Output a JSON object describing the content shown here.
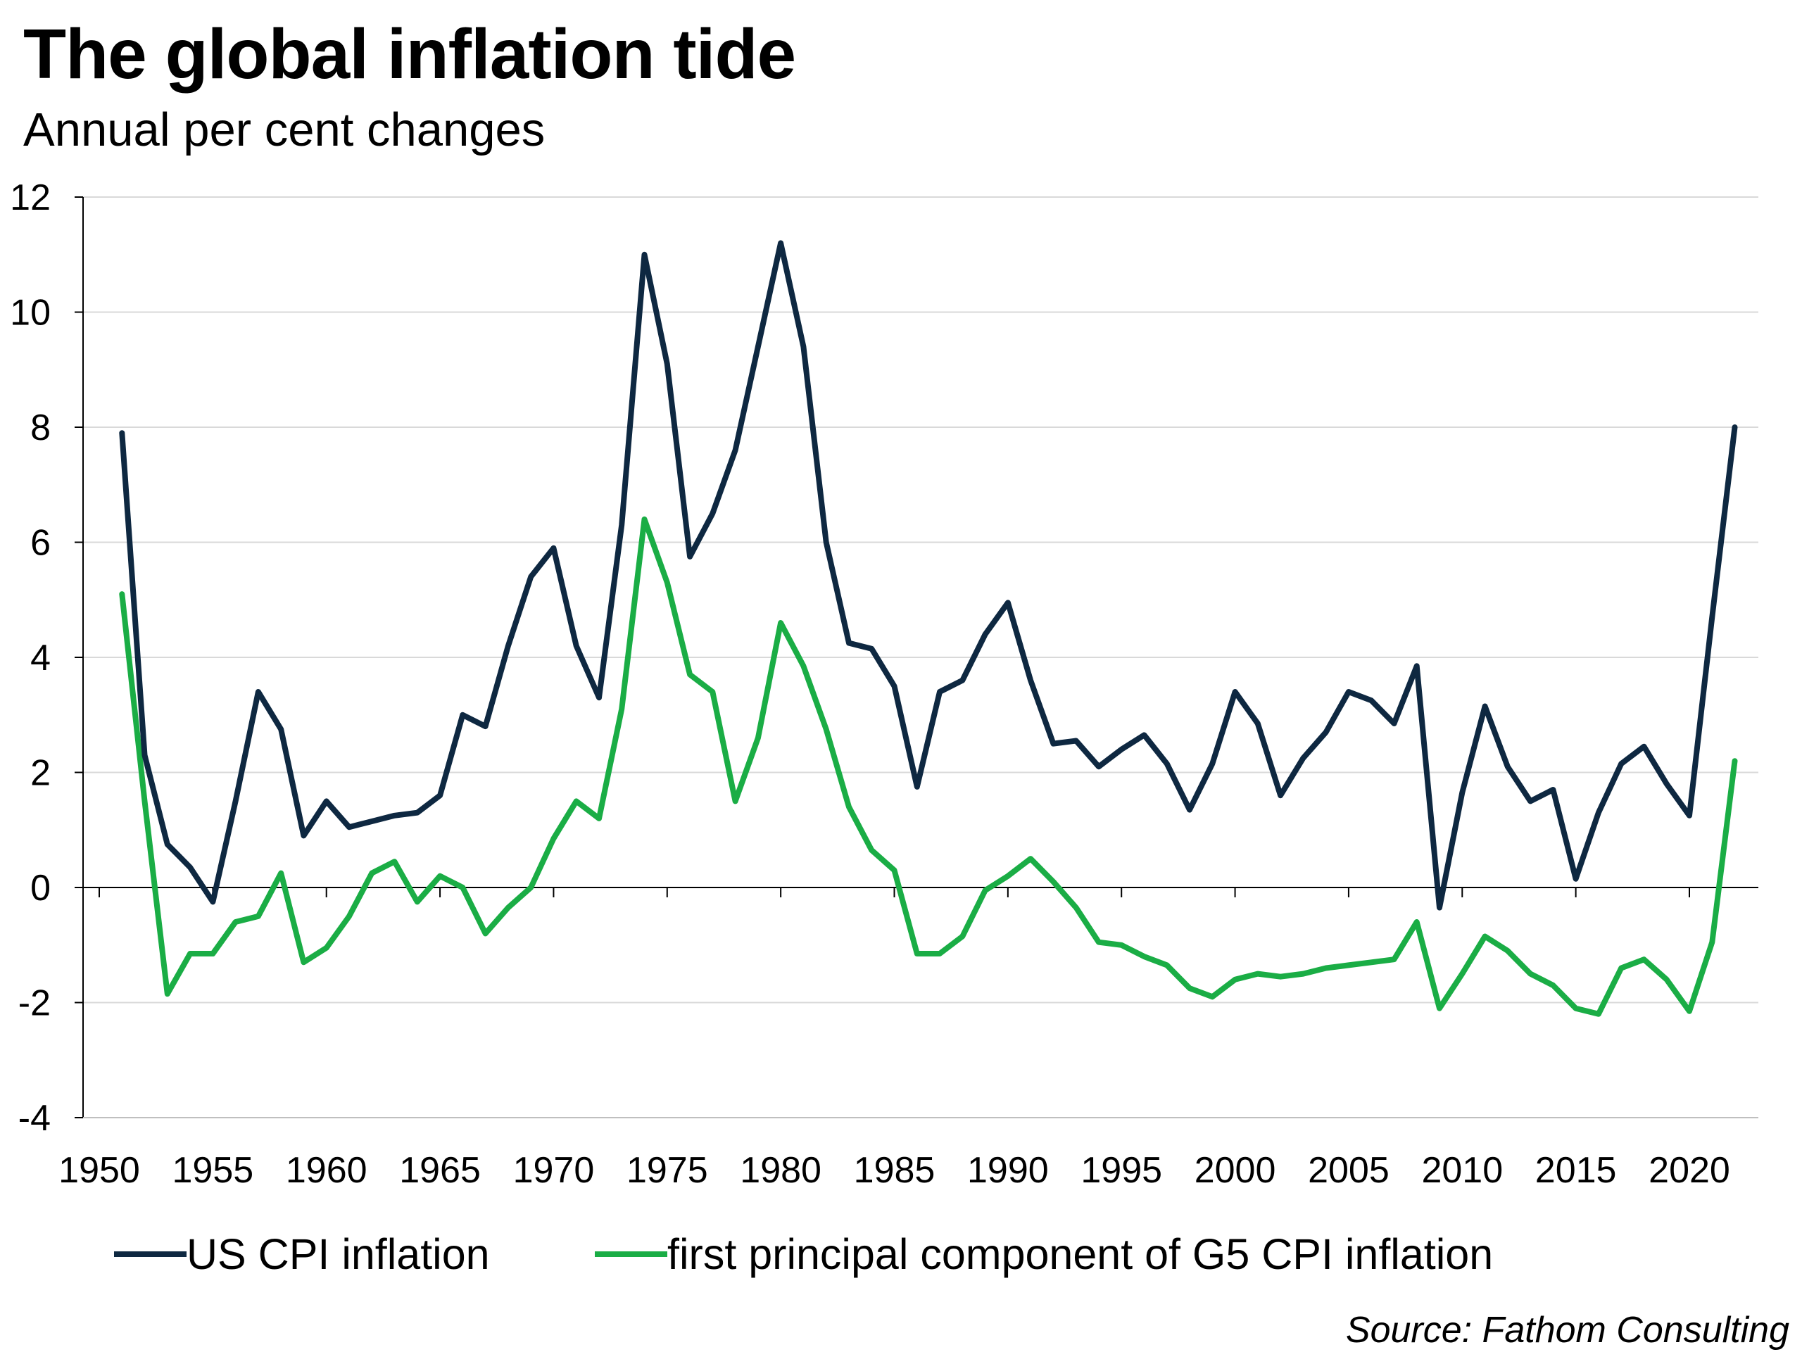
{
  "title": "The global inflation tide",
  "subtitle": "Annual per cent changes",
  "source": "Source: Fathom Consulting",
  "colors": {
    "us_cpi": "#0e2841",
    "g5_pc": "#1aad45",
    "grid": "#d9d9d9",
    "axis": "#000000"
  },
  "chart_data": {
    "type": "line",
    "title": "The global inflation tide",
    "subtitle": "Annual per cent changes",
    "xlabel": "",
    "ylabel": "",
    "xlim": [
      1950,
      2022
    ],
    "ylim": [
      -4,
      12
    ],
    "grid": true,
    "legend": "bottom",
    "y_ticks": [
      12,
      10,
      8,
      6,
      4,
      2,
      0,
      -2,
      -4
    ],
    "y_tick_labels": [
      "12",
      "10",
      "8",
      "6",
      "4",
      "2",
      "0",
      "-2",
      "-4"
    ],
    "x_ticks": [
      1950,
      1955,
      1960,
      1965,
      1970,
      1975,
      1980,
      1985,
      1990,
      1995,
      2000,
      2005,
      2010,
      2015,
      2020
    ],
    "x_tick_labels": [
      "1950",
      "1955",
      "1960",
      "1965",
      "1970",
      "1975",
      "1980",
      "1985",
      "1990",
      "1995",
      "2000",
      "2005",
      "2010",
      "2015",
      "2020"
    ],
    "x": [
      1951,
      1952,
      1953,
      1954,
      1955,
      1956,
      1957,
      1958,
      1959,
      1960,
      1961,
      1962,
      1963,
      1964,
      1965,
      1966,
      1967,
      1968,
      1969,
      1970,
      1971,
      1972,
      1973,
      1974,
      1975,
      1976,
      1977,
      1978,
      1979,
      1980,
      1981,
      1982,
      1983,
      1984,
      1985,
      1986,
      1987,
      1988,
      1989,
      1990,
      1991,
      1992,
      1993,
      1994,
      1995,
      1996,
      1997,
      1998,
      1999,
      2000,
      2001,
      2002,
      2003,
      2004,
      2005,
      2006,
      2007,
      2008,
      2009,
      2010,
      2011,
      2012,
      2013,
      2014,
      2015,
      2016,
      2017,
      2018,
      2019,
      2020,
      2021,
      2022
    ],
    "series": [
      {
        "name": "US CPI inflation",
        "values": [
          7.9,
          2.3,
          0.75,
          0.35,
          -0.25,
          1.5,
          3.4,
          2.75,
          0.9,
          1.5,
          1.05,
          1.15,
          1.25,
          1.3,
          1.6,
          3.0,
          2.8,
          4.2,
          5.4,
          5.9,
          4.2,
          3.3,
          6.3,
          11.0,
          9.1,
          5.75,
          6.5,
          7.6,
          9.4,
          11.2,
          9.4,
          6.0,
          4.25,
          4.15,
          3.5,
          1.75,
          3.4,
          3.6,
          4.4,
          4.95,
          3.6,
          2.5,
          2.55,
          2.1,
          2.4,
          2.65,
          2.15,
          1.35,
          2.15,
          3.4,
          2.85,
          1.6,
          2.25,
          2.7,
          3.4,
          3.25,
          2.85,
          3.85,
          -0.35,
          1.65,
          3.15,
          2.1,
          1.5,
          1.7,
          0.15,
          1.3,
          2.15,
          2.45,
          1.8,
          1.25,
          4.7,
          8.0
        ]
      },
      {
        "name": "first principal component of G5 CPI inflation",
        "values": [
          5.1,
          1.5,
          -1.85,
          -1.15,
          -1.15,
          -0.6,
          -0.5,
          0.25,
          -1.3,
          -1.05,
          -0.5,
          0.25,
          0.45,
          -0.25,
          0.2,
          0.0,
          -0.8,
          -0.35,
          0.0,
          0.85,
          1.5,
          1.2,
          3.1,
          6.4,
          5.3,
          3.7,
          3.4,
          1.5,
          2.6,
          4.6,
          3.85,
          2.75,
          1.4,
          0.65,
          0.3,
          -1.15,
          -1.15,
          -0.85,
          -0.05,
          0.2,
          0.5,
          0.1,
          -0.35,
          -0.95,
          -1.0,
          -1.2,
          -1.35,
          -1.75,
          -1.9,
          -1.6,
          -1.5,
          -1.55,
          -1.5,
          -1.4,
          -1.35,
          -1.3,
          -1.25,
          -0.6,
          -2.1,
          -1.5,
          -0.85,
          -1.1,
          -1.5,
          -1.7,
          -2.1,
          -2.2,
          -1.4,
          -1.25,
          -1.6,
          -2.15,
          -0.95,
          2.2
        ]
      }
    ]
  }
}
